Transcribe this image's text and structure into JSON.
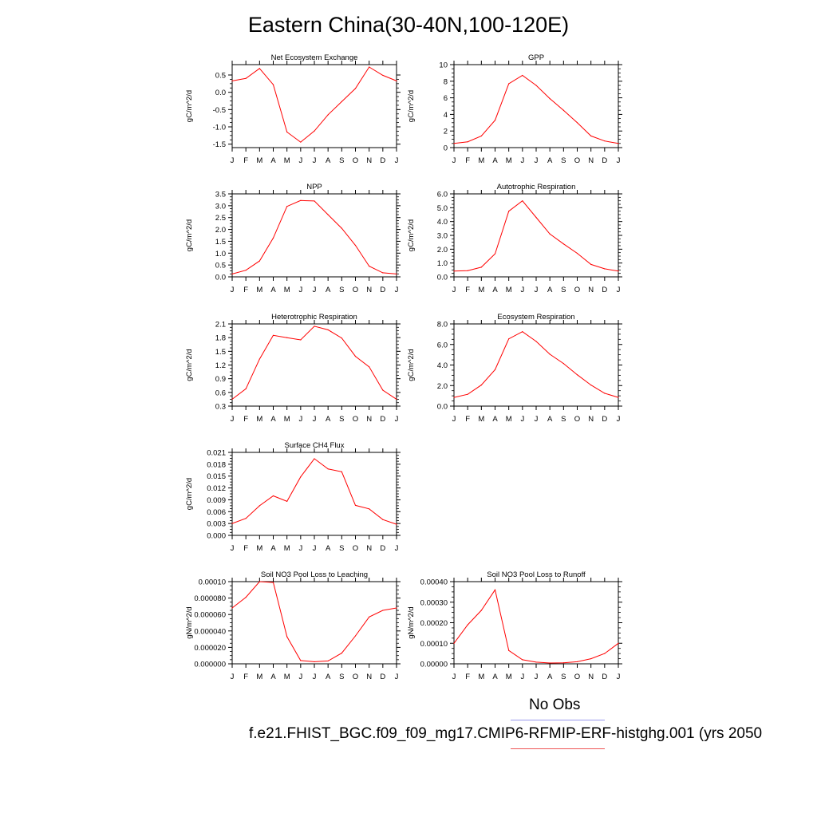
{
  "title": "Eastern China(30-40N,100-120E)",
  "legend": {
    "obs_label": "No Obs",
    "model_label": "f.e21.FHIST_BGC.f09_f09_mg17.CMIP6-RFMIP-ERF-histghg.001 (yrs 2050",
    "obs_color": "#8888ee",
    "model_color": "#ff0000"
  },
  "chart_data": [
    {
      "type": "line",
      "title": "Net Ecosystem Exchange",
      "ylabel": "gC/m^2/d",
      "x": [
        "J",
        "F",
        "M",
        "A",
        "M",
        "J",
        "J",
        "A",
        "S",
        "O",
        "N",
        "D",
        "J"
      ],
      "ylim": [
        -1.6,
        0.8
      ],
      "yticks": [
        "0.5",
        "0.0",
        "-0.5",
        "-1.0",
        "-1.5"
      ],
      "ytick_values": [
        0.5,
        0.0,
        -0.5,
        -1.0,
        -1.5
      ],
      "series": [
        {
          "values": [
            0.33,
            0.4,
            0.69,
            0.22,
            -1.15,
            -1.44,
            -1.12,
            -0.65,
            -0.27,
            0.11,
            0.73,
            0.49,
            0.33
          ]
        }
      ]
    },
    {
      "type": "line",
      "title": "GPP",
      "ylabel": "gC/m^2/d",
      "x": [
        "J",
        "F",
        "M",
        "A",
        "M",
        "J",
        "J",
        "A",
        "S",
        "O",
        "N",
        "D",
        "J"
      ],
      "ylim": [
        0,
        10
      ],
      "yticks": [
        "10",
        "8",
        "6",
        "4",
        "2",
        "0"
      ],
      "ytick_values": [
        10,
        8,
        6,
        4,
        2,
        0
      ],
      "series": [
        {
          "values": [
            0.5,
            0.7,
            1.4,
            3.3,
            7.7,
            8.7,
            7.5,
            5.9,
            4.5,
            3.0,
            1.4,
            0.8,
            0.5
          ]
        }
      ]
    },
    {
      "type": "line",
      "title": "NPP",
      "ylabel": "gC/m^2/d",
      "x": [
        "J",
        "F",
        "M",
        "A",
        "M",
        "J",
        "J",
        "A",
        "S",
        "O",
        "N",
        "D",
        "J"
      ],
      "ylim": [
        0,
        3.5
      ],
      "yticks": [
        "3.5",
        "3.0",
        "2.5",
        "2.0",
        "1.5",
        "1.0",
        "0.5",
        "0.0"
      ],
      "ytick_values": [
        3.5,
        3.0,
        2.5,
        2.0,
        1.5,
        1.0,
        0.5,
        0.0
      ],
      "series": [
        {
          "values": [
            0.12,
            0.28,
            0.67,
            1.64,
            2.97,
            3.22,
            3.2,
            2.62,
            2.05,
            1.33,
            0.45,
            0.17,
            0.12
          ]
        }
      ]
    },
    {
      "type": "line",
      "title": "Autotrophic Respiration",
      "ylabel": "gC/m^2/d",
      "x": [
        "J",
        "F",
        "M",
        "A",
        "M",
        "J",
        "J",
        "A",
        "S",
        "O",
        "N",
        "D",
        "J"
      ],
      "ylim": [
        0,
        6
      ],
      "yticks": [
        "6.0",
        "5.0",
        "4.0",
        "3.0",
        "2.0",
        "1.0",
        "0.0"
      ],
      "ytick_values": [
        6,
        5,
        4,
        3,
        2,
        1,
        0
      ],
      "series": [
        {
          "values": [
            0.42,
            0.45,
            0.7,
            1.67,
            4.75,
            5.5,
            4.3,
            3.1,
            2.38,
            1.7,
            0.9,
            0.58,
            0.42
          ]
        }
      ]
    },
    {
      "type": "line",
      "title": "Heterotrophic Respiration",
      "ylabel": "gC/m^2/d",
      "x": [
        "J",
        "F",
        "M",
        "A",
        "M",
        "J",
        "J",
        "A",
        "S",
        "O",
        "N",
        "D",
        "J"
      ],
      "ylim": [
        0.3,
        2.1
      ],
      "yticks": [
        "2.1",
        "1.8",
        "1.5",
        "1.2",
        "0.9",
        "0.6",
        "0.3"
      ],
      "ytick_values": [
        2.1,
        1.8,
        1.5,
        1.2,
        0.9,
        0.6,
        0.3
      ],
      "series": [
        {
          "values": [
            0.45,
            0.68,
            1.33,
            1.85,
            1.8,
            1.75,
            2.05,
            1.97,
            1.79,
            1.39,
            1.16,
            0.65,
            0.45
          ]
        }
      ]
    },
    {
      "type": "line",
      "title": "Ecosystem Respiration",
      "ylabel": "gC/m^2/d",
      "x": [
        "J",
        "F",
        "M",
        "A",
        "M",
        "J",
        "J",
        "A",
        "S",
        "O",
        "N",
        "D",
        "J"
      ],
      "ylim": [
        0,
        8
      ],
      "yticks": [
        "8.0",
        "6.0",
        "4.0",
        "2.0",
        "0.0"
      ],
      "ytick_values": [
        8,
        6,
        4,
        2,
        0
      ],
      "series": [
        {
          "values": [
            0.85,
            1.15,
            2.05,
            3.55,
            6.55,
            7.25,
            6.3,
            5.05,
            4.15,
            3.05,
            2.05,
            1.25,
            0.85
          ]
        }
      ]
    },
    {
      "type": "line",
      "title": "Surface CH4 Flux",
      "ylabel": "gC/m^2/d",
      "x": [
        "J",
        "F",
        "M",
        "A",
        "M",
        "J",
        "J",
        "A",
        "S",
        "O",
        "N",
        "D",
        "J"
      ],
      "ylim": [
        0,
        0.021
      ],
      "yticks": [
        "0.021",
        "0.018",
        "0.015",
        "0.012",
        "0.009",
        "0.006",
        "0.003",
        "0.000"
      ],
      "ytick_values": [
        0.021,
        0.018,
        0.015,
        0.012,
        0.009,
        0.006,
        0.003,
        0.0
      ],
      "series": [
        {
          "values": [
            0.003,
            0.0043,
            0.0075,
            0.01,
            0.0086,
            0.0148,
            0.0194,
            0.0168,
            0.0161,
            0.0076,
            0.0067,
            0.004,
            0.0028
          ]
        }
      ]
    },
    {
      "type": "line",
      "title": "Soil NO3 Pool Loss to Leaching",
      "ylabel": "gN/m^2/d",
      "x": [
        "J",
        "F",
        "M",
        "A",
        "M",
        "J",
        "J",
        "A",
        "S",
        "O",
        "N",
        "D",
        "J"
      ],
      "ylim": [
        0,
        0.0001
      ],
      "yticks": [
        "0.00010",
        "0.000080",
        "0.000060",
        "0.000040",
        "0.000020",
        "0.000000"
      ],
      "ytick_values": [
        0.0001,
        8e-05,
        6e-05,
        4e-05,
        2e-05,
        0.0
      ],
      "series": [
        {
          "values": [
            6.8e-05,
            8.1e-05,
            0.0001,
            9.9e-05,
            3.3e-05,
            4e-06,
            2.5e-06,
            3.5e-06,
            1.3e-05,
            3.4e-05,
            5.7e-05,
            6.5e-05,
            6.8e-05
          ]
        }
      ]
    },
    {
      "type": "line",
      "title": "Soil NO3 Pool Loss to Runoff",
      "ylabel": "gN/m^2/d",
      "x": [
        "J",
        "F",
        "M",
        "A",
        "M",
        "J",
        "J",
        "A",
        "S",
        "O",
        "N",
        "D",
        "J"
      ],
      "ylim": [
        0,
        0.0004
      ],
      "yticks": [
        "0.00040",
        "0.00030",
        "0.00020",
        "0.00010",
        "0.00000"
      ],
      "ytick_values": [
        0.0004,
        0.0003,
        0.0002,
        0.0001,
        0.0
      ],
      "series": [
        {
          "values": [
            0.0001,
            0.00019,
            0.00026,
            0.00036,
            6.5e-05,
            2e-05,
            8e-06,
            4e-06,
            5e-06,
            1e-05,
            2.5e-05,
            5e-05,
            0.0001
          ]
        }
      ]
    }
  ]
}
